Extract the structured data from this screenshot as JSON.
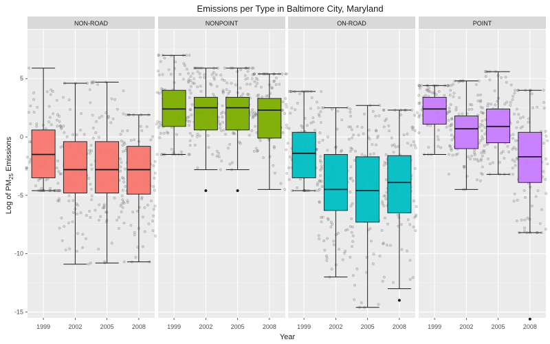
{
  "chart_data": {
    "type": "box",
    "title": "Emissions per Type in Baltimore City, Maryland",
    "xlabel": "Year",
    "ylabel_main": "Log of PM",
    "ylabel_sub": "25",
    "ylabel_tail": " Emissions",
    "ylim": [
      -15.5,
      9.2
    ],
    "yticks": [
      5,
      0,
      -5,
      -10,
      -15
    ],
    "ytick_labels": [
      "5",
      "0",
      "-5",
      "-10",
      "-15"
    ],
    "categories": [
      "1999",
      "2002",
      "2005",
      "2008"
    ],
    "grid": true,
    "legend": "none",
    "colors": {
      "NON-ROAD": "#f8766d",
      "NONPOINT": "#7cae00",
      "ON-ROAD": "#00bfc4",
      "POINT": "#c77cff",
      "panel_bg": "#ebebeb",
      "strip_bg": "#d9d9d9",
      "grid": "#ffffff",
      "points": "#555555"
    },
    "panels": [
      {
        "name": "NON-ROAD",
        "boxes": [
          {
            "year": "1999",
            "whisker_low": -4.6,
            "q1": -3.5,
            "median": -1.5,
            "q3": 0.6,
            "whisker_high": 5.9,
            "outliers": []
          },
          {
            "year": "2002",
            "whisker_low": -10.9,
            "q1": -4.8,
            "median": -2.8,
            "q3": -0.4,
            "whisker_high": 4.6,
            "outliers": []
          },
          {
            "year": "2005",
            "whisker_low": -10.8,
            "q1": -4.8,
            "median": -2.8,
            "q3": -0.4,
            "whisker_high": 4.7,
            "outliers": []
          },
          {
            "year": "2008",
            "whisker_low": -10.7,
            "q1": -4.9,
            "median": -2.8,
            "q3": -0.8,
            "whisker_high": 1.9,
            "outliers": []
          }
        ]
      },
      {
        "name": "NONPOINT",
        "boxes": [
          {
            "year": "1999",
            "whisker_low": -1.5,
            "q1": 0.9,
            "median": 2.4,
            "q3": 4.0,
            "whisker_high": 7.0,
            "outliers": []
          },
          {
            "year": "2002",
            "whisker_low": -2.8,
            "q1": 0.6,
            "median": 2.5,
            "q3": 3.4,
            "whisker_high": 5.9,
            "outliers": [
              -4.6
            ]
          },
          {
            "year": "2005",
            "whisker_low": -2.8,
            "q1": 0.6,
            "median": 2.5,
            "q3": 3.4,
            "whisker_high": 5.9,
            "outliers": [
              -4.6
            ]
          },
          {
            "year": "2008",
            "whisker_low": -4.5,
            "q1": -0.1,
            "median": 2.3,
            "q3": 3.3,
            "whisker_high": 5.4,
            "outliers": []
          }
        ]
      },
      {
        "name": "ON-ROAD",
        "boxes": [
          {
            "year": "1999",
            "whisker_low": -4.6,
            "q1": -3.5,
            "median": -1.4,
            "q3": 0.4,
            "whisker_high": 3.9,
            "outliers": []
          },
          {
            "year": "2002",
            "whisker_low": -12.0,
            "q1": -6.3,
            "median": -4.5,
            "q3": -1.5,
            "whisker_high": 2.5,
            "outliers": []
          },
          {
            "year": "2005",
            "whisker_low": -14.6,
            "q1": -7.3,
            "median": -4.6,
            "q3": -1.7,
            "whisker_high": 2.7,
            "outliers": []
          },
          {
            "year": "2008",
            "whisker_low": -13.0,
            "q1": -6.5,
            "median": -3.9,
            "q3": -1.6,
            "whisker_high": 2.3,
            "outliers": [
              -14.0
            ]
          }
        ]
      },
      {
        "name": "POINT",
        "boxes": [
          {
            "year": "1999",
            "whisker_low": -1.5,
            "q1": 1.1,
            "median": 2.4,
            "q3": 3.4,
            "whisker_high": 4.4,
            "outliers": []
          },
          {
            "year": "2002",
            "whisker_low": -4.5,
            "q1": -1.0,
            "median": 0.7,
            "q3": 1.8,
            "whisker_high": 4.8,
            "outliers": []
          },
          {
            "year": "2005",
            "whisker_low": -3.2,
            "q1": -0.5,
            "median": 0.9,
            "q3": 2.4,
            "whisker_high": 5.6,
            "outliers": []
          },
          {
            "year": "2008",
            "whisker_low": -8.2,
            "q1": -3.9,
            "median": -1.7,
            "q3": 0.4,
            "whisker_high": 4.0,
            "outliers": [
              -15.6
            ]
          }
        ]
      }
    ]
  }
}
